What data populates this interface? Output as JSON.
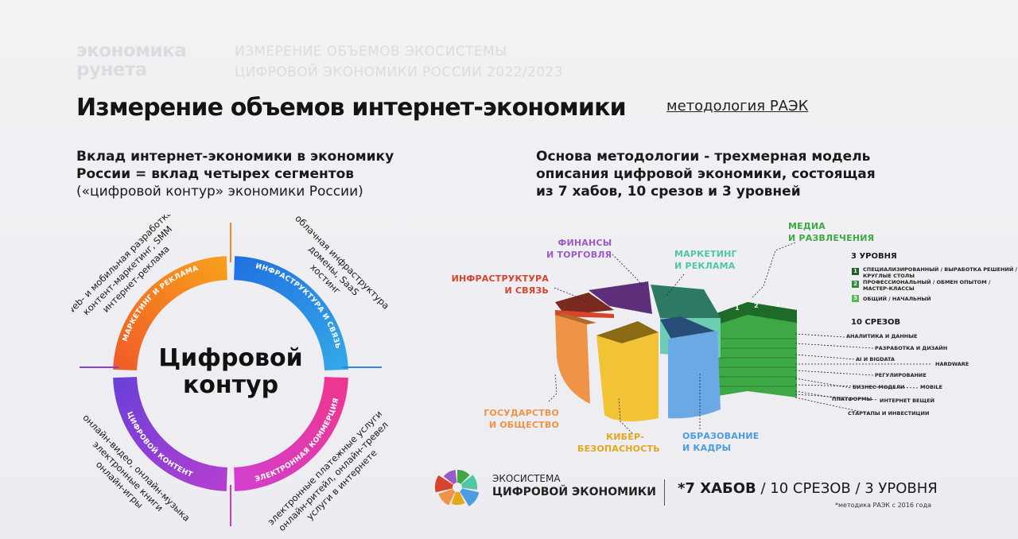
{
  "brand": {
    "line1": "экономика",
    "line2": "рунета"
  },
  "report": {
    "line1": "ИЗМЕРЕНИЕ ОБЪЕМОВ ЭКОСИСТЕМЫ",
    "line2": "ЦИФРОВОЙ ЭКОНОМИКИ РОССИИ 2022/2023"
  },
  "title": "Измерение объемов интернет-экономики",
  "methodology_link": "методология РАЭК",
  "left_subtitle": {
    "line1": "Вклад интернет-экономики в экономику",
    "line2": "России = вклад четырех сегментов",
    "line3": "(«цифровой контур» экономики России)"
  },
  "right_subtitle": {
    "line1": "Основа методологии - трехмерная модель",
    "line2": "описания цифровой экономики, состоящая",
    "line3": "из 7 хабов, 10 срезов и 3 уровней"
  },
  "circle": {
    "center_line1": "Цифровой",
    "center_line2": "контур",
    "segments": [
      {
        "label": "МАРКЕТИНГ И РЕКЛАМА",
        "color": "#f07e1e",
        "items": [
          "интернет-реклама",
          "контент-маркетинг, SMM",
          "web- и мобильная разработка"
        ]
      },
      {
        "label": "ИНФРАСТРУКТУРА И СВЯЗЬ",
        "color": "#2f86de",
        "items": [
          "хостинг",
          "домены, SaaS",
          "облачная инфраструктура"
        ]
      },
      {
        "label": "ЭЛЕКТРОННАЯ КОММЕРЦИЯ",
        "color": "#e23fb0",
        "items": [
          "электронные платежные услуги",
          "онлайн-ритейл, онлайн-тревел",
          "услуги в интернете"
        ]
      },
      {
        "label": "ЦИФРОВОЙ КОНТЕНТ",
        "color": "#8a3fd1",
        "items": [
          "онлайн-видео, онлайн-музыка",
          "электронные книги",
          "онлайн-игры"
        ]
      }
    ]
  },
  "hubs": [
    {
      "line1": "ФИНАНСЫ",
      "line2": "И ТОРГОВЛЯ",
      "color": "#9b5bc6"
    },
    {
      "line1": "МАРКЕТИНГ",
      "line2": "И РЕКЛАМА",
      "color": "#4fc6a6"
    },
    {
      "line1": "МЕДИА",
      "line2": "И РАЗВЛЕЧЕНИЯ",
      "color": "#3ea845"
    },
    {
      "line1": "ИНФРАСТРУКТУРА",
      "line2": "И СВЯЗЬ",
      "color": "#d8432c"
    },
    {
      "line1": "ГОСУДАРСТВО",
      "line2": "И ОБЩЕСТВО",
      "color": "#ef9348"
    },
    {
      "line1": "КИБЕР-",
      "line2": "БЕЗОПАСНОСТЬ",
      "color": "#e2a81b"
    },
    {
      "line1": "ОБРАЗОВАНИЕ",
      "line2": "И КАДРЫ",
      "color": "#4d9be0"
    }
  ],
  "levels": {
    "title": "3 УРОВНЯ",
    "items": [
      {
        "num": "1",
        "text1": "СПЕЦИАЛИЗИРОВАННЫЙ / ВЫРАБОТКА РЕШЕНИЙ /",
        "text2": "КРУГЛЫЕ СТОЛЫ",
        "color": "#1f5e26"
      },
      {
        "num": "2",
        "text1": "ПРОФЕССИОНАЛЬНЫЙ / ОБМЕН ОПЫТОМ /",
        "text2": "МАСТЕР-КЛАССЫ",
        "color": "#2f8a38"
      },
      {
        "num": "3",
        "text1": "ОБЩИЙ / НАЧАЛЬНЫЙ",
        "text2": "",
        "color": "#52b957"
      }
    ],
    "layer_marks": [
      "1",
      "2",
      "3"
    ]
  },
  "slices": {
    "title": "10 СРЕЗОВ",
    "items": [
      "АНАЛИТИКА И ДАННЫЕ",
      "РАЗРАБОТКА И ДИЗАЙН",
      "AI И BIGDATA",
      "HARDWARE",
      "РЕГУЛИРОВАНИЕ",
      "БИЗНЕС-МОДЕЛИ",
      "MOBILE",
      "ПЛАТФОРМЫ",
      "ИНТЕРНЕТ ВЕЩЕЙ",
      "СТАРТАПЫ И ИНВЕСТИЦИИ"
    ]
  },
  "footer": {
    "eco_line1": "ЭКОСИСТЕМА",
    "eco_line2": "ЦИФРОВОЙ ЭКОНОМИКИ",
    "hubs_bold": "*7 ХАБОВ",
    "hubs_rest": " / 10 СРЕЗОВ / 3 УРОВНЯ",
    "note": "*методика РАЭК с 2016 года"
  }
}
